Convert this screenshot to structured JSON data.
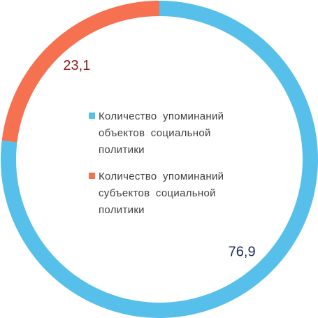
{
  "chart_data": {
    "type": "donut",
    "categories": [
      "Количество упоминаний объектов социальной политики",
      "Количество упоминаний субъектов социальной политики"
    ],
    "values": [
      76.9,
      23.1
    ],
    "value_labels": [
      "76,9",
      "23,1"
    ],
    "colors": [
      "#56c0ea",
      "#f5714f"
    ],
    "label_colors": [
      "#1f2b5c",
      "#8b1c1c"
    ]
  }
}
